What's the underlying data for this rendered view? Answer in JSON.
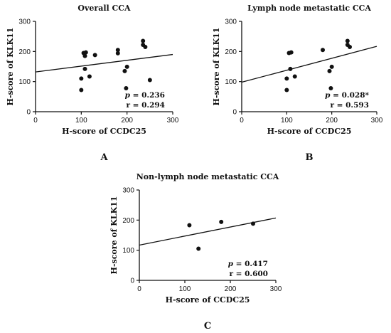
{
  "chart_data": [
    {
      "type": "scatter",
      "panel_label": "A",
      "title": "Overall CCA",
      "xlabel": "H-score of CCDC25",
      "ylabel": "H-score of KLK11",
      "xlim": [
        0,
        300
      ],
      "ylim": [
        0,
        300
      ],
      "xticks": [
        "0",
        "100",
        "200",
        "300"
      ],
      "yticks": [
        "0",
        "100",
        "200",
        "300"
      ],
      "points": [
        {
          "x": 100,
          "y": 72
        },
        {
          "x": 100,
          "y": 110
        },
        {
          "x": 105,
          "y": 195
        },
        {
          "x": 108,
          "y": 142
        },
        {
          "x": 108,
          "y": 185
        },
        {
          "x": 110,
          "y": 197
        },
        {
          "x": 118,
          "y": 117
        },
        {
          "x": 130,
          "y": 188
        },
        {
          "x": 180,
          "y": 205
        },
        {
          "x": 180,
          "y": 194
        },
        {
          "x": 195,
          "y": 135
        },
        {
          "x": 198,
          "y": 78
        },
        {
          "x": 200,
          "y": 149
        },
        {
          "x": 235,
          "y": 235
        },
        {
          "x": 235,
          "y": 222
        },
        {
          "x": 240,
          "y": 215
        },
        {
          "x": 250,
          "y": 105
        }
      ],
      "trendline": {
        "x": [
          0,
          300
        ],
        "y": [
          132,
          190
        ]
      },
      "stats": {
        "p_label": "p",
        "p_value": " = 0.236",
        "r": "r = 0.294"
      }
    },
    {
      "type": "scatter",
      "panel_label": "B",
      "title": "Lymph node metastatic CCA",
      "xlabel": "H-score of CCDC25",
      "ylabel": "H-score of KLK11",
      "xlim": [
        0,
        300
      ],
      "ylim": [
        0,
        300
      ],
      "xticks": [
        "0",
        "100",
        "200",
        "300"
      ],
      "yticks": [
        "0",
        "100",
        "200",
        "300"
      ],
      "points": [
        {
          "x": 100,
          "y": 72
        },
        {
          "x": 100,
          "y": 110
        },
        {
          "x": 105,
          "y": 195
        },
        {
          "x": 108,
          "y": 142
        },
        {
          "x": 110,
          "y": 197
        },
        {
          "x": 118,
          "y": 117
        },
        {
          "x": 180,
          "y": 205
        },
        {
          "x": 195,
          "y": 135
        },
        {
          "x": 198,
          "y": 78
        },
        {
          "x": 200,
          "y": 149
        },
        {
          "x": 235,
          "y": 235
        },
        {
          "x": 235,
          "y": 222
        },
        {
          "x": 240,
          "y": 215
        }
      ],
      "trendline": {
        "x": [
          0,
          300
        ],
        "y": [
          98,
          217
        ]
      },
      "stats": {
        "p_label": "p",
        "p_value": " = 0.028*",
        "r": "r = 0.593"
      }
    },
    {
      "type": "scatter",
      "panel_label": "C",
      "title": "Non-lymph node metastatic CCA",
      "xlabel": "H-score of CCDC25",
      "ylabel": "H-score of KLK11",
      "xlim": [
        0,
        300
      ],
      "ylim": [
        0,
        300
      ],
      "xticks": [
        "0",
        "100",
        "200",
        "300"
      ],
      "yticks": [
        "0",
        "100",
        "200",
        "300"
      ],
      "points": [
        {
          "x": 110,
          "y": 183
        },
        {
          "x": 130,
          "y": 105
        },
        {
          "x": 180,
          "y": 194
        },
        {
          "x": 250,
          "y": 188
        }
      ],
      "trendline": {
        "x": [
          0,
          300
        ],
        "y": [
          117,
          207
        ]
      },
      "stats": {
        "p_label": "p",
        "p_value": " = 0.417",
        "r": "r = 0.600"
      }
    }
  ]
}
